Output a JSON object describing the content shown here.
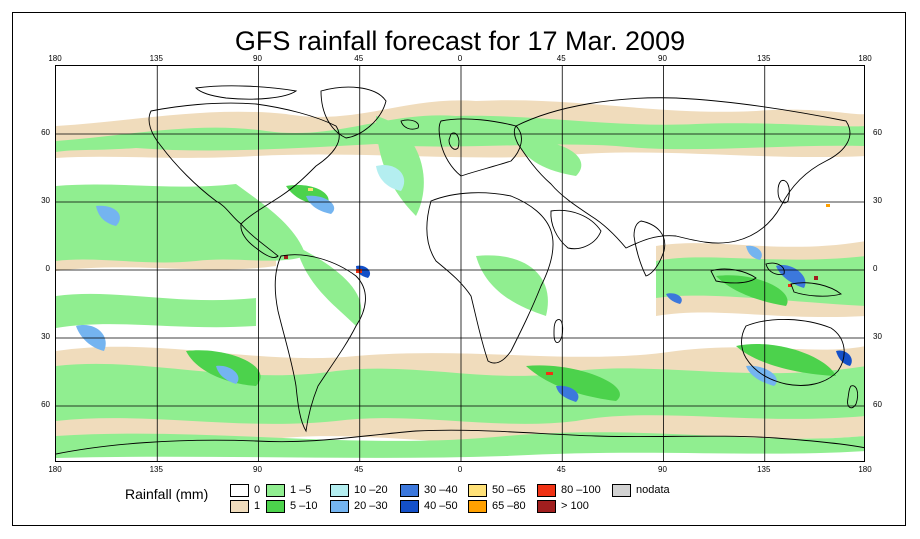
{
  "title": "GFS rainfall forecast for 17 Mar. 2009",
  "lon_ticks": [
    "180",
    "135",
    "90",
    "45",
    "0",
    "45",
    "90",
    "135",
    "180"
  ],
  "lat_ticks": [
    "60",
    "30",
    "0",
    "30",
    "60"
  ],
  "legend": {
    "title": "Rainfall (mm)",
    "items": [
      {
        "label": "0",
        "color": "#ffffff"
      },
      {
        "label": "1",
        "color": "#f0dcbc"
      },
      {
        "label": "1 –5",
        "color": "#90ee90"
      },
      {
        "label": "5 –10",
        "color": "#4cd24c"
      },
      {
        "label": "10 –20",
        "color": "#b4eef0"
      },
      {
        "label": "20 –30",
        "color": "#74b4f0"
      },
      {
        "label": "30 –40",
        "color": "#3c78dc"
      },
      {
        "label": "40 –50",
        "color": "#1450c8"
      },
      {
        "label": "50 –65",
        "color": "#ffe178"
      },
      {
        "label": "65 –80",
        "color": "#ffa000"
      },
      {
        "label": "80 –100",
        "color": "#f03214"
      },
      {
        "label": "> 100",
        "color": "#a01e1e"
      },
      {
        "label": "nodata",
        "color": "#d2d2d2"
      }
    ]
  }
}
